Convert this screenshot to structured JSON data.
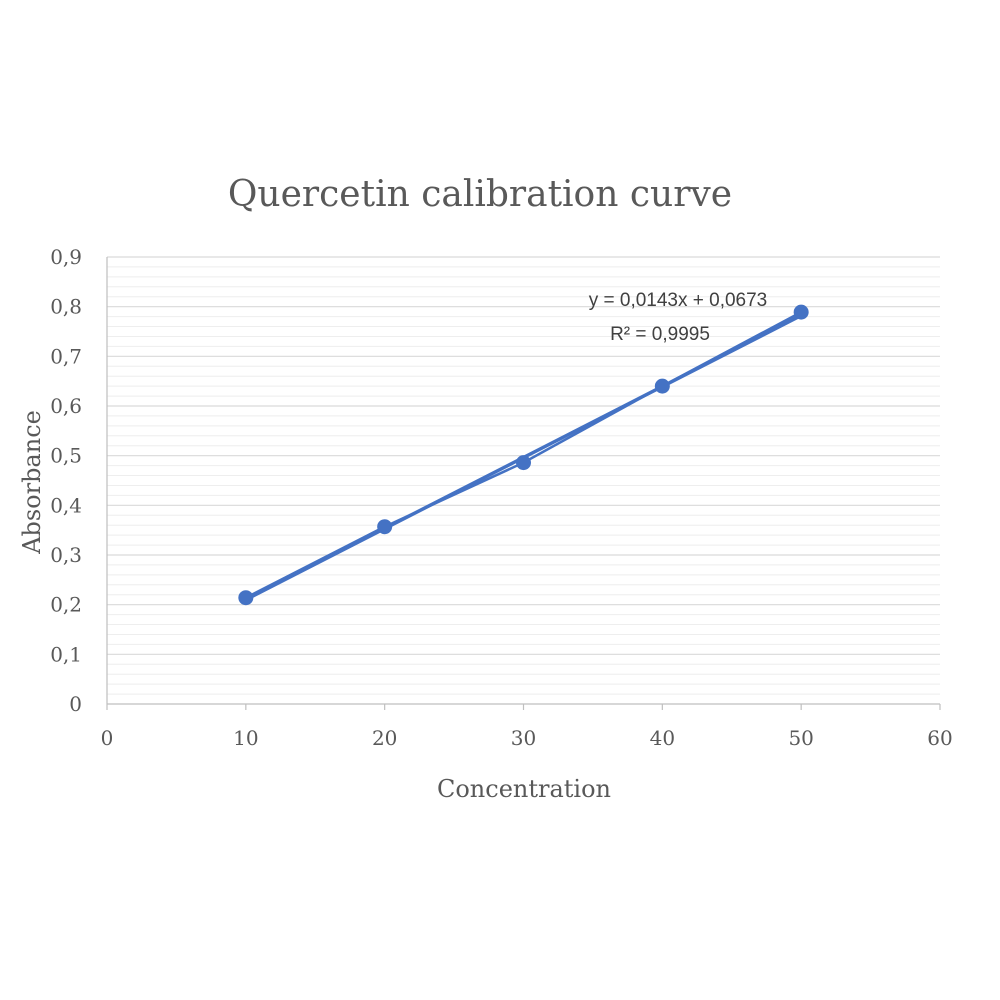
{
  "chart_data": {
    "type": "scatter",
    "title": "Quercetin calibration curve",
    "xlabel": "Concentration",
    "ylabel": "Absorbance",
    "xlim": [
      0,
      60
    ],
    "ylim": [
      0,
      0.9
    ],
    "x_ticks": [
      "0",
      "10",
      "20",
      "30",
      "40",
      "50",
      "60"
    ],
    "y_ticks": [
      "0",
      "0,1",
      "0,2",
      "0,3",
      "0,4",
      "0,5",
      "0,6",
      "0,7",
      "0,8",
      "0,9"
    ],
    "series": [
      {
        "x": [
          10,
          20,
          30,
          40,
          50
        ],
        "y": [
          0.214,
          0.357,
          0.486,
          0.64,
          0.789
        ],
        "color": "#4472c4"
      }
    ],
    "trendline": {
      "type": "linear",
      "slope": 0.0143,
      "intercept": 0.0673,
      "color": "#4472c4"
    },
    "equation_label": "y = 0,0143x + 0,0673",
    "r2_label": "R² = 0,9995",
    "grid": {
      "horizontal_major": true,
      "horizontal_minor": true,
      "vertical": false
    }
  }
}
